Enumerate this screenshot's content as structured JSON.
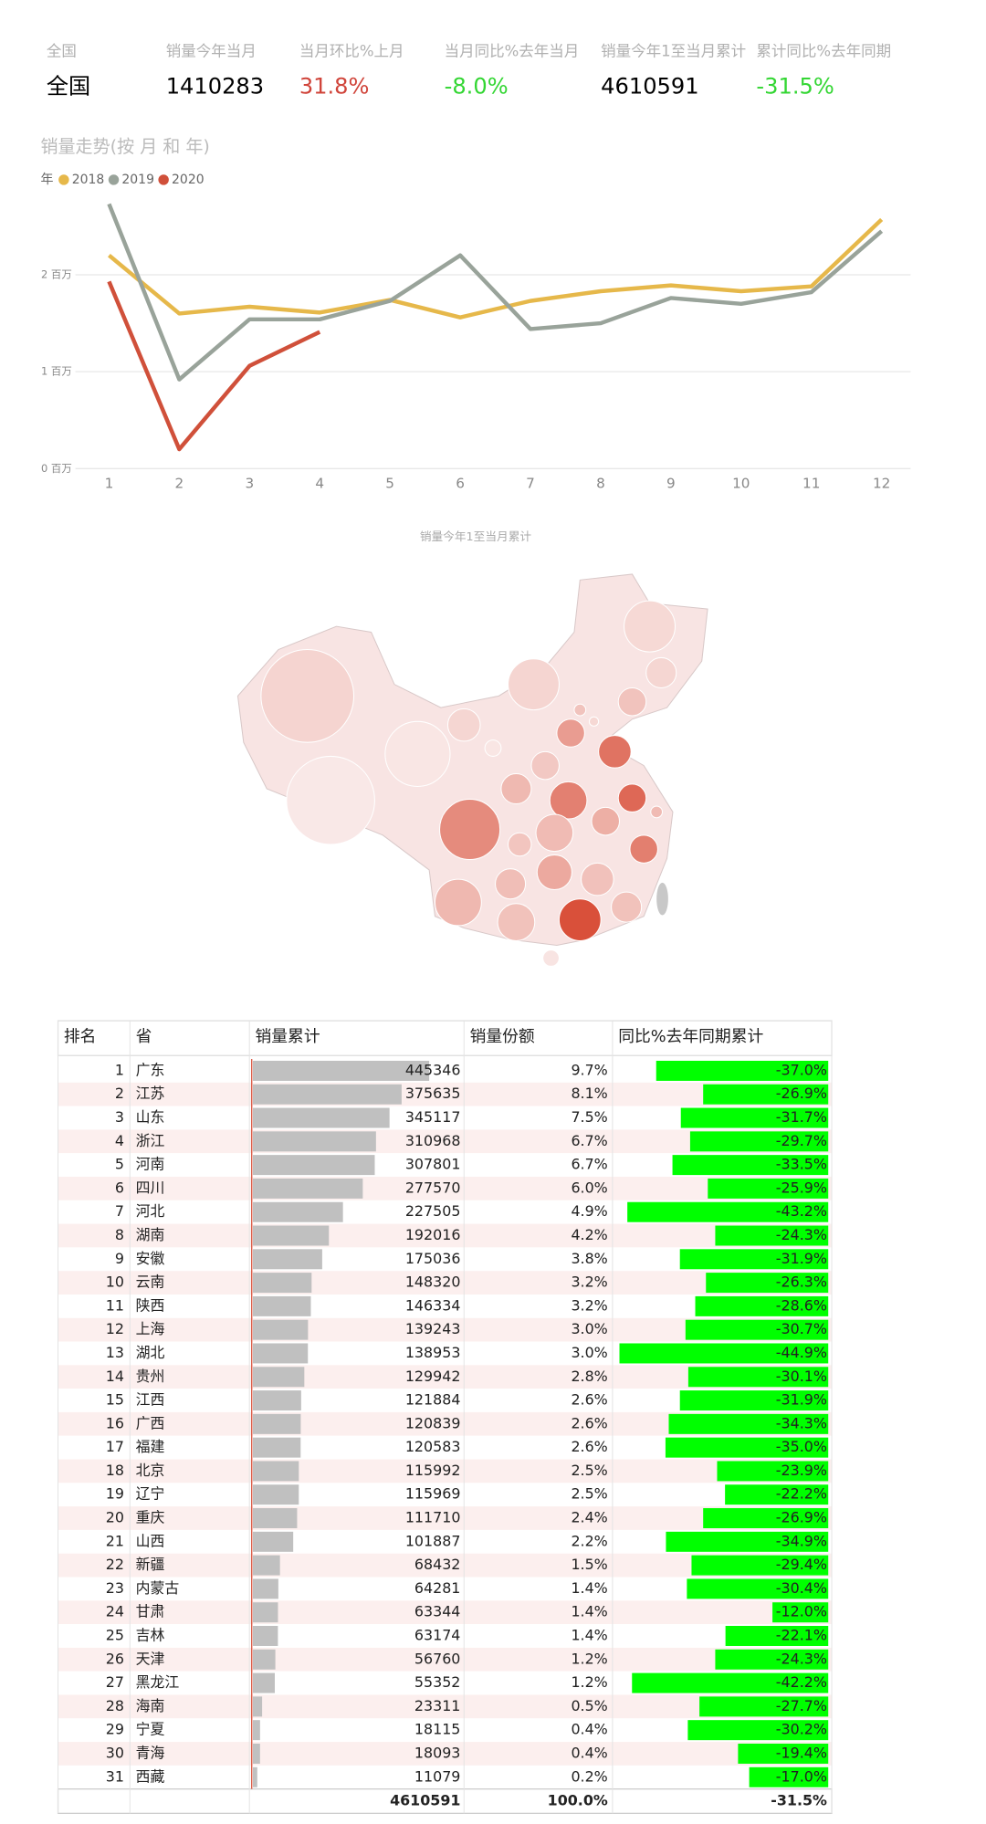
{
  "kpi": [
    {
      "label": "全国",
      "value": "全国",
      "color": "#000000"
    },
    {
      "label": "销量今年当月",
      "value": "1410283",
      "color": "#000000"
    },
    {
      "label": "当月环比%上月",
      "value": "31.8%",
      "color": "#d0443a"
    },
    {
      "label": "当月同比%去年当月",
      "value": "-8.0%",
      "color": "#33d633"
    },
    {
      "label": "销量今年1至当月累计",
      "value": "4610591",
      "color": "#000000"
    },
    {
      "label": "累计同比%去年同期",
      "value": "-31.5%",
      "color": "#33d633"
    }
  ],
  "chart_data": {
    "type": "line",
    "title": "销量走势(按 月 和 年)",
    "legend_title": "年",
    "categories": [
      "1",
      "2",
      "3",
      "4",
      "5",
      "6",
      "7",
      "8",
      "9",
      "10",
      "11",
      "12"
    ],
    "series": [
      {
        "name": "2018",
        "color": "#e6b84a",
        "values": [
          2200000,
          1600000,
          1670000,
          1610000,
          1740000,
          1560000,
          1730000,
          1830000,
          1890000,
          1830000,
          1880000,
          2570000
        ]
      },
      {
        "name": "2019",
        "color": "#99a39a",
        "values": [
          2730000,
          920000,
          1540000,
          1540000,
          1730000,
          2200000,
          1440000,
          1500000,
          1760000,
          1700000,
          1820000,
          2450000
        ]
      },
      {
        "name": "2020",
        "color": "#d0503a",
        "values": [
          1930000,
          200000,
          1060000,
          1410283,
          null,
          null,
          null,
          null,
          null,
          null,
          null,
          null
        ]
      }
    ],
    "ylim": [
      0,
      2800000
    ],
    "yticks": [
      {
        "value": 0,
        "label": "0 百万"
      },
      {
        "value": 1000000,
        "label": "1 百万"
      },
      {
        "value": 2000000,
        "label": "2 百万"
      }
    ],
    "grid": true
  },
  "map": {
    "title": "销量今年1至当月累计",
    "color": "#d9503a"
  },
  "table": {
    "columns": [
      "排名",
      "省",
      "销量累计",
      "销量份额",
      "同比%去年同期累计"
    ],
    "bar_color": "#c0c0c0",
    "yoy_bar_color": "#00ff00",
    "rows": [
      [
        1,
        "广东",
        445346,
        "9.7%",
        {
          "value": -37.0,
          "label": "-37.0%"
        }
      ],
      [
        2,
        "江苏",
        375635,
        "8.1%",
        {
          "value": -26.9,
          "label": "-26.9%"
        }
      ],
      [
        3,
        "山东",
        345117,
        "7.5%",
        {
          "value": -31.7,
          "label": "-31.7%"
        }
      ],
      [
        4,
        "浙江",
        310968,
        "6.7%",
        {
          "value": -29.7,
          "label": "-29.7%"
        }
      ],
      [
        5,
        "河南",
        307801,
        "6.7%",
        {
          "value": -33.5,
          "label": "-33.5%"
        }
      ],
      [
        6,
        "四川",
        277570,
        "6.0%",
        {
          "value": -25.9,
          "label": "-25.9%"
        }
      ],
      [
        7,
        "河北",
        227505,
        "4.9%",
        {
          "value": -43.2,
          "label": "-43.2%"
        }
      ],
      [
        8,
        "湖南",
        192016,
        "4.2%",
        {
          "value": -24.3,
          "label": "-24.3%"
        }
      ],
      [
        9,
        "安徽",
        175036,
        "3.8%",
        {
          "value": -31.9,
          "label": "-31.9%"
        }
      ],
      [
        10,
        "云南",
        148320,
        "3.2%",
        {
          "value": -26.3,
          "label": "-26.3%"
        }
      ],
      [
        11,
        "陕西",
        146334,
        "3.2%",
        {
          "value": -28.6,
          "label": "-28.6%"
        }
      ],
      [
        12,
        "上海",
        139243,
        "3.0%",
        {
          "value": -30.7,
          "label": "-30.7%"
        }
      ],
      [
        13,
        "湖北",
        138953,
        "3.0%",
        {
          "value": -44.9,
          "label": "-44.9%"
        }
      ],
      [
        14,
        "贵州",
        129942,
        "2.8%",
        {
          "value": -30.1,
          "label": "-30.1%"
        }
      ],
      [
        15,
        "江西",
        121884,
        "2.6%",
        {
          "value": -31.9,
          "label": "-31.9%"
        }
      ],
      [
        16,
        "广西",
        120839,
        "2.6%",
        {
          "value": -34.3,
          "label": "-34.3%"
        }
      ],
      [
        17,
        "福建",
        120583,
        "2.6%",
        {
          "value": -35.0,
          "label": "-35.0%"
        }
      ],
      [
        18,
        "北京",
        115992,
        "2.5%",
        {
          "value": -23.9,
          "label": "-23.9%"
        }
      ],
      [
        19,
        "辽宁",
        115969,
        "2.5%",
        {
          "value": -22.2,
          "label": "-22.2%"
        }
      ],
      [
        20,
        "重庆",
        111710,
        "2.4%",
        {
          "value": -26.9,
          "label": "-26.9%"
        }
      ],
      [
        21,
        "山西",
        101887,
        "2.2%",
        {
          "value": -34.9,
          "label": "-34.9%"
        }
      ],
      [
        22,
        "新疆",
        68432,
        "1.5%",
        {
          "value": -29.4,
          "label": "-29.4%"
        }
      ],
      [
        23,
        "内蒙古",
        64281,
        "1.4%",
        {
          "value": -30.4,
          "label": "-30.4%"
        }
      ],
      [
        24,
        "甘肃",
        63344,
        "1.4%",
        {
          "value": -12.0,
          "label": "-12.0%"
        }
      ],
      [
        25,
        "吉林",
        63174,
        "1.4%",
        {
          "value": -22.1,
          "label": "-22.1%"
        }
      ],
      [
        26,
        "天津",
        56760,
        "1.2%",
        {
          "value": -24.3,
          "label": "-24.3%"
        }
      ],
      [
        27,
        "黑龙江",
        55352,
        "1.2%",
        {
          "value": -42.2,
          "label": "-42.2%"
        }
      ],
      [
        28,
        "海南",
        23311,
        "0.5%",
        {
          "value": -27.7,
          "label": "-27.7%"
        }
      ],
      [
        29,
        "宁夏",
        18115,
        "0.4%",
        {
          "value": -30.2,
          "label": "-30.2%"
        }
      ],
      [
        30,
        "青海",
        18093,
        "0.4%",
        {
          "value": -19.4,
          "label": "-19.4%"
        }
      ],
      [
        31,
        "西藏",
        11079,
        "0.2%",
        {
          "value": -17.0,
          "label": "-17.0%"
        }
      ]
    ],
    "total": {
      "cumulative": 4610591,
      "share": "100.0%",
      "yoy": "-31.5%"
    }
  }
}
